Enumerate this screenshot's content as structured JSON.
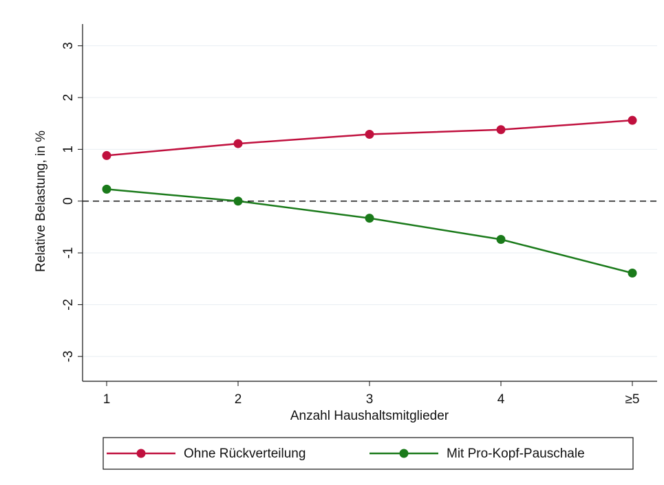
{
  "chart_data": {
    "type": "line",
    "x_label": "Anzahl Haushaltsmitglieder",
    "y_label": "Relative Belastung, in %",
    "categories": [
      "1",
      "2",
      "3",
      "4",
      "≥5"
    ],
    "series": [
      {
        "name": "Ohne Rückverteilung",
        "color": "#c0103e",
        "values": [
          0.88,
          1.11,
          1.29,
          1.38,
          1.56
        ]
      },
      {
        "name": "Mit Pro-Kopf-Pauschale",
        "color": "#1a7a1a",
        "values": [
          0.23,
          0.0,
          -0.33,
          -0.74,
          -1.39
        ]
      }
    ],
    "ylim": [
      -3.48,
      3.42
    ],
    "yticks": [
      -3,
      -2,
      -1,
      0,
      1,
      2,
      3
    ],
    "grid": true,
    "hline": 0,
    "legend": "bottom"
  }
}
